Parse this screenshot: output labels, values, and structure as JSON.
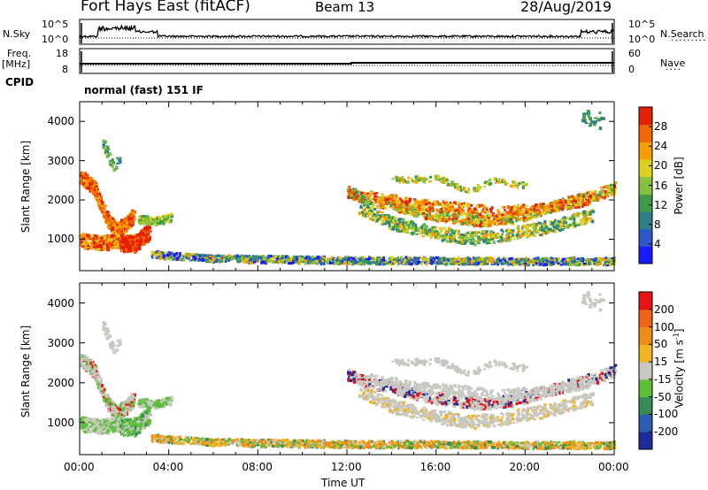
{
  "header": {
    "title": "Fort Hays East (fitACF)",
    "beam": "Beam 13",
    "date": "28/Aug/2019"
  },
  "top_panels": {
    "nsky_label": "N.Sky",
    "nsky_ticks": [
      "10^5",
      "10^0"
    ],
    "nsearch_label": "N.Search",
    "nsearch_ticks": [
      "10^5",
      "10^0"
    ],
    "freq_label": "Freq.",
    "freq_unit": "[MHz]",
    "freq_ticks": [
      "18",
      "8"
    ],
    "nave_label": "Nave",
    "nave_ticks": [
      "60",
      "0"
    ],
    "cpid_label": "CPID",
    "cpid_text": "normal (fast) 151 IF"
  },
  "chart_data": [
    {
      "type": "heatmap",
      "name": "power-panel",
      "ylabel": "Slant Range [km]",
      "yticks": [
        "4000",
        "3000",
        "2000",
        "1000"
      ],
      "ytick_values": [
        4000,
        3000,
        2000,
        1000
      ],
      "ylim": [
        200,
        4500
      ],
      "xlim_hours": [
        0,
        24
      ],
      "colorbar": {
        "label": "Power [dB]",
        "ticks": [
          "28",
          "24",
          "20",
          "16",
          "12",
          "8",
          "4"
        ],
        "colors": [
          "#1a1aff",
          "#2a58c8",
          "#2f7f88",
          "#3f9a4a",
          "#86c040",
          "#dcd020",
          "#f5a000",
          "#f06800",
          "#e52000"
        ]
      }
    },
    {
      "type": "heatmap",
      "name": "velocity-panel",
      "ylabel": "Slant Range [km]",
      "yticks": [
        "4000",
        "3000",
        "2000",
        "1000"
      ],
      "ytick_values": [
        4000,
        3000,
        2000,
        1000
      ],
      "ylim": [
        200,
        4500
      ],
      "xlim_hours": [
        0,
        24
      ],
      "xticks": [
        "00:00",
        "04:00",
        "08:00",
        "12:00",
        "16:00",
        "20:00",
        "00:00"
      ],
      "xlabel": "Time UT",
      "colorbar": {
        "label": "Velocity [m s",
        "label_sup": "-1",
        "label_end": "]",
        "ticks": [
          "200",
          "100",
          "50",
          "15",
          "-15",
          "-50",
          "-100",
          "-200"
        ],
        "colors": [
          "#1c2c9c",
          "#2d5cb4",
          "#3a8a58",
          "#5cbf3a",
          "#c8c8c0",
          "#f0b420",
          "#f08c1a",
          "#ee6418",
          "#e81414"
        ]
      }
    }
  ]
}
